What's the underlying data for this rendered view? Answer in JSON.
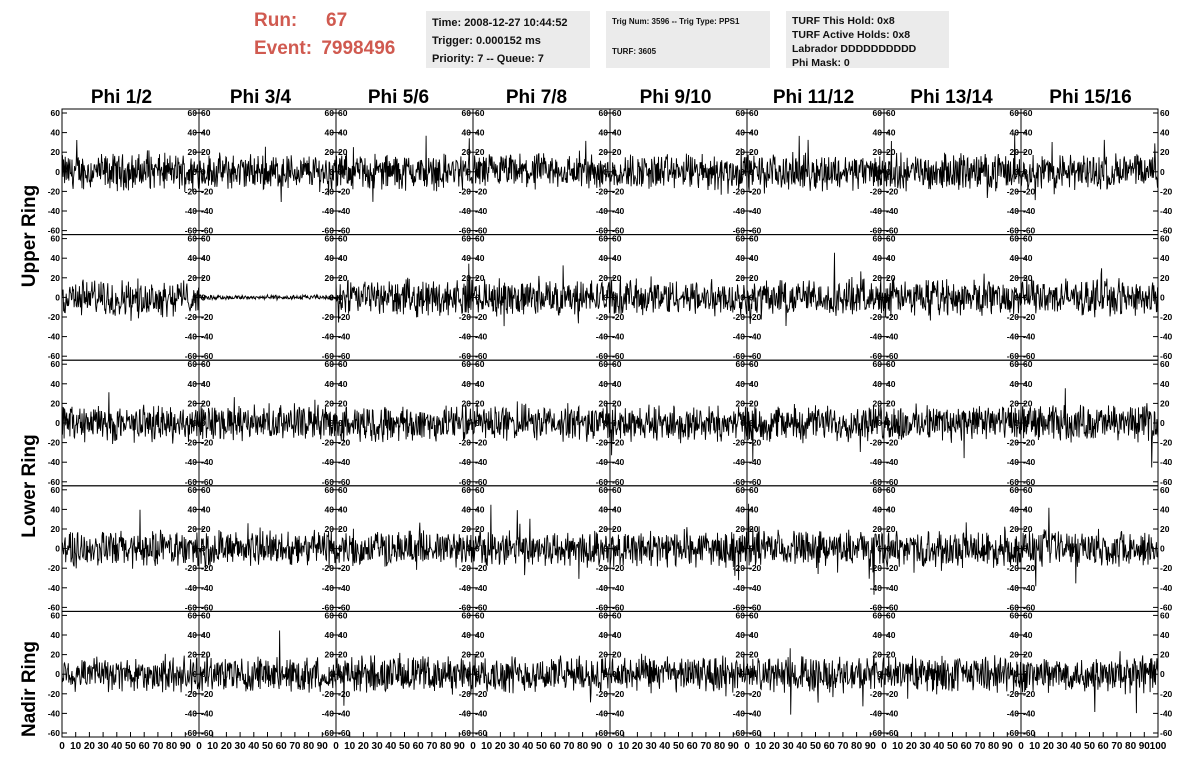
{
  "header": {
    "run_label": "Run:",
    "run_value": "67",
    "event_label": "Event:",
    "event_value": "7998496"
  },
  "info_boxes": [
    {
      "lines": [
        "Time: 2008-12-27 10:44:52",
        "Trigger: 0.000152 ms",
        "Priority: 7 -- Queue: 7"
      ]
    },
    {
      "lines": [
        "Trig Num: 3596 -- Trig Type: PPS1",
        "",
        "TURF: 3605"
      ]
    },
    {
      "lines": [
        "TURF This Hold: 0x8",
        "TURF Active Holds: 0x8",
        "Labrador DDDDDDDDDD",
        "Phi Mask: 0"
      ]
    }
  ],
  "columns": [
    "Phi 1/2",
    "Phi 3/4",
    "Phi 5/6",
    "Phi 7/8",
    "Phi 9/10",
    "Phi 11/12",
    "Phi 13/14",
    "Phi 15/16"
  ],
  "row_groups": [
    "Upper Ring",
    "Lower Ring",
    "Nadir Ring"
  ],
  "colors": {
    "accent": "#d05a50",
    "box_bg": "#ebebeb",
    "trace": "#000000"
  },
  "chart_data": {
    "type": "line",
    "rows": 5,
    "cols": 8,
    "xlim": [
      0,
      100
    ],
    "ylim": [
      -60,
      60
    ],
    "y_ticks": [
      -60,
      -40,
      -20,
      0,
      20,
      40,
      60
    ],
    "x_ticks": [
      0,
      10,
      20,
      30,
      40,
      50,
      60,
      70,
      80,
      90,
      100
    ],
    "x_tick_label_text": [
      "0",
      "10",
      "20",
      "30",
      "40",
      "50",
      "60",
      "70",
      "80",
      "90",
      "100"
    ],
    "typical_amplitude": 15,
    "quiet_panel": {
      "row": 1,
      "col": 1,
      "amplitude": 2
    },
    "grid": false
  }
}
